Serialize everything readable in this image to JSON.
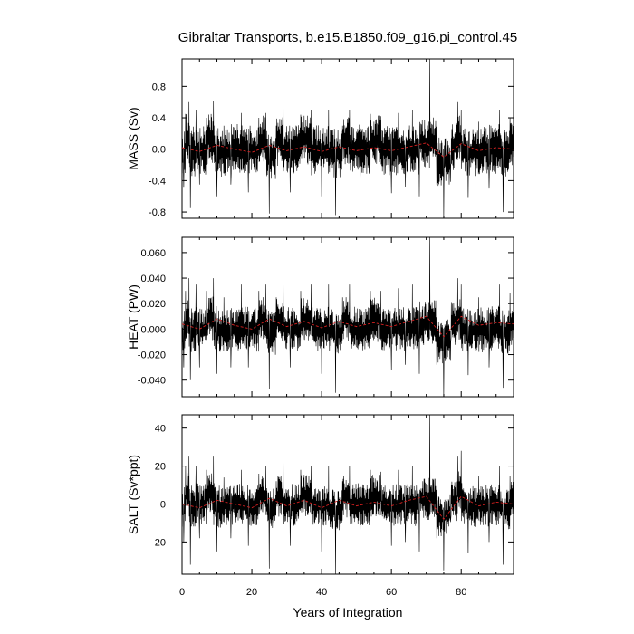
{
  "chart_data": {
    "type": "line",
    "title": "Gibraltar Transports, b.e15.B1850.f09_g16.pi_control.45",
    "xlabel": "Years of Integration",
    "xlim": [
      0,
      95
    ],
    "xticks": [
      0,
      20,
      40,
      60,
      80
    ],
    "xtick_labels": [
      "0",
      "20",
      "40",
      "60",
      "80"
    ],
    "colors": {
      "raw": "#000000",
      "smooth": "#d62020"
    },
    "panels": [
      {
        "ylabel": "MASS (Sv)",
        "ylim": [
          -0.88,
          1.15
        ],
        "yticks": [
          0.8,
          0.4,
          0.0,
          -0.4,
          -0.8
        ],
        "ytick_labels": [
          "0.8",
          "0.4",
          "0.0",
          "-0.4",
          "-0.8"
        ],
        "amp": 0.2,
        "series": [
          {
            "values": [
              [
                0,
                0.05
              ],
              [
                0.5,
                -0.49
              ],
              [
                1,
                0.45
              ],
              [
                2,
                0.6
              ],
              [
                2.4,
                -0.75
              ],
              [
                4,
                0.5
              ],
              [
                5,
                -0.45
              ],
              [
                7,
                0.4
              ],
              [
                9,
                0.62
              ],
              [
                10,
                -0.6
              ],
              [
                12,
                0.3
              ],
              [
                14,
                -0.45
              ],
              [
                17,
                0.46
              ],
              [
                19,
                -0.55
              ],
              [
                22,
                0.4
              ],
              [
                24,
                0.46
              ],
              [
                25,
                -0.82
              ],
              [
                27,
                0.3
              ],
              [
                29,
                0.52
              ],
              [
                31,
                -0.55
              ],
              [
                34,
                0.44
              ],
              [
                37,
                0.5
              ],
              [
                40,
                -0.6
              ],
              [
                42,
                0.5
              ],
              [
                44,
                -0.84
              ],
              [
                46,
                0.3
              ],
              [
                48,
                0.5
              ],
              [
                51,
                -0.5
              ],
              [
                54,
                0.45
              ],
              [
                57,
                0.42
              ],
              [
                60,
                -0.56
              ],
              [
                62,
                0.46
              ],
              [
                64,
                -0.48
              ],
              [
                66,
                0.5
              ],
              [
                68,
                -0.6
              ],
              [
                71,
                1.2
              ],
              [
                73,
                -0.45
              ],
              [
                75,
                -0.88
              ],
              [
                77,
                -0.2
              ],
              [
                79,
                0.6
              ],
              [
                80,
                0.5
              ],
              [
                82,
                -0.62
              ],
              [
                85,
                0.35
              ],
              [
                88,
                -0.5
              ],
              [
                91,
                0.5
              ],
              [
                92,
                -0.8
              ],
              [
                94,
                0.4
              ],
              [
                95,
                0.1
              ]
            ]
          },
          {
            "values": [
              [
                0,
                0.02
              ],
              [
                5,
                -0.03
              ],
              [
                10,
                0.05
              ],
              [
                15,
                0.0
              ],
              [
                20,
                -0.04
              ],
              [
                25,
                0.05
              ],
              [
                30,
                -0.02
              ],
              [
                35,
                0.03
              ],
              [
                40,
                -0.03
              ],
              [
                45,
                0.03
              ],
              [
                50,
                -0.02
              ],
              [
                55,
                0.02
              ],
              [
                60,
                -0.02
              ],
              [
                65,
                0.03
              ],
              [
                70,
                0.08
              ],
              [
                75,
                -0.1
              ],
              [
                80,
                0.07
              ],
              [
                85,
                -0.02
              ],
              [
                90,
                0.02
              ],
              [
                95,
                0.0
              ]
            ]
          }
        ]
      },
      {
        "ylabel": "HEAT (PW)",
        "ylim": [
          -0.053,
          0.072
        ],
        "yticks": [
          0.06,
          0.04,
          0.02,
          0.0,
          -0.02,
          -0.04
        ],
        "ytick_labels": [
          "0.060",
          "0.040",
          "0.020",
          "0.000",
          "-0.020",
          "-0.040"
        ],
        "amp": 0.011,
        "series": [
          {
            "values": [
              [
                0,
                0.005
              ],
              [
                0.5,
                -0.03
              ],
              [
                1,
                0.03
              ],
              [
                2,
                0.04
              ],
              [
                2.4,
                -0.04
              ],
              [
                4,
                0.035
              ],
              [
                5,
                -0.03
              ],
              [
                7,
                0.03
              ],
              [
                9,
                0.04
              ],
              [
                10,
                -0.035
              ],
              [
                12,
                0.025
              ],
              [
                14,
                -0.03
              ],
              [
                17,
                0.035
              ],
              [
                19,
                -0.03
              ],
              [
                22,
                0.03
              ],
              [
                24,
                0.035
              ],
              [
                25,
                -0.047
              ],
              [
                27,
                0.025
              ],
              [
                29,
                0.035
              ],
              [
                31,
                -0.03
              ],
              [
                34,
                0.03
              ],
              [
                37,
                0.035
              ],
              [
                40,
                -0.035
              ],
              [
                42,
                0.035
              ],
              [
                44,
                -0.05
              ],
              [
                46,
                0.025
              ],
              [
                48,
                0.035
              ],
              [
                51,
                -0.03
              ],
              [
                54,
                0.03
              ],
              [
                57,
                0.03
              ],
              [
                60,
                -0.032
              ],
              [
                62,
                0.032
              ],
              [
                64,
                -0.028
              ],
              [
                66,
                0.035
              ],
              [
                68,
                -0.035
              ],
              [
                71,
                0.072
              ],
              [
                73,
                -0.028
              ],
              [
                75,
                -0.053
              ],
              [
                77,
                -0.01
              ],
              [
                79,
                0.04
              ],
              [
                80,
                0.035
              ],
              [
                82,
                -0.036
              ],
              [
                85,
                0.025
              ],
              [
                88,
                -0.03
              ],
              [
                91,
                0.035
              ],
              [
                92,
                -0.046
              ],
              [
                94,
                0.028
              ],
              [
                95,
                0.006
              ]
            ]
          },
          {
            "values": [
              [
                0,
                0.004
              ],
              [
                5,
                0.0
              ],
              [
                10,
                0.008
              ],
              [
                15,
                0.003
              ],
              [
                20,
                0.0
              ],
              [
                25,
                0.008
              ],
              [
                30,
                0.002
              ],
              [
                35,
                0.006
              ],
              [
                40,
                0.001
              ],
              [
                45,
                0.006
              ],
              [
                50,
                0.002
              ],
              [
                55,
                0.005
              ],
              [
                60,
                0.002
              ],
              [
                65,
                0.006
              ],
              [
                70,
                0.01
              ],
              [
                75,
                -0.006
              ],
              [
                80,
                0.01
              ],
              [
                85,
                0.003
              ],
              [
                90,
                0.005
              ],
              [
                95,
                0.004
              ]
            ]
          }
        ]
      },
      {
        "ylabel": "SALT (Sv*ppt)",
        "ylim": [
          -37,
          47
        ],
        "yticks": [
          40,
          20,
          0,
          -20
        ],
        "ytick_labels": [
          "40",
          "20",
          "0",
          "-20"
        ],
        "amp": 7,
        "series": [
          {
            "values": [
              [
                0,
                1
              ],
              [
                0.5,
                -20
              ],
              [
                1,
                20
              ],
              [
                2,
                25
              ],
              [
                2.4,
                -32
              ],
              [
                4,
                20
              ],
              [
                5,
                -18
              ],
              [
                7,
                18
              ],
              [
                9,
                25
              ],
              [
                10,
                -25
              ],
              [
                12,
                14
              ],
              [
                14,
                -18
              ],
              [
                17,
                18
              ],
              [
                19,
                -22
              ],
              [
                22,
                16
              ],
              [
                24,
                20
              ],
              [
                25,
                -34
              ],
              [
                27,
                12
              ],
              [
                29,
                22
              ],
              [
                31,
                -22
              ],
              [
                34,
                18
              ],
              [
                37,
                20
              ],
              [
                40,
                -25
              ],
              [
                42,
                20
              ],
              [
                44,
                -37
              ],
              [
                46,
                12
              ],
              [
                48,
                20
              ],
              [
                51,
                -20
              ],
              [
                54,
                18
              ],
              [
                57,
                17
              ],
              [
                60,
                -22
              ],
              [
                62,
                18
              ],
              [
                64,
                -20
              ],
              [
                66,
                20
              ],
              [
                68,
                -25
              ],
              [
                71,
                47
              ],
              [
                73,
                -18
              ],
              [
                75,
                -35
              ],
              [
                77,
                -8
              ],
              [
                79,
                25
              ],
              [
                80,
                28
              ],
              [
                82,
                -26
              ],
              [
                85,
                15
              ],
              [
                88,
                -20
              ],
              [
                91,
                20
              ],
              [
                92,
                -32
              ],
              [
                94,
                15
              ],
              [
                95,
                3
              ]
            ]
          },
          {
            "values": [
              [
                0,
                0
              ],
              [
                5,
                -2
              ],
              [
                10,
                2
              ],
              [
                15,
                0
              ],
              [
                20,
                -2
              ],
              [
                25,
                3
              ],
              [
                30,
                -1
              ],
              [
                35,
                2
              ],
              [
                40,
                -2
              ],
              [
                45,
                2
              ],
              [
                50,
                -1
              ],
              [
                55,
                1
              ],
              [
                60,
                -1
              ],
              [
                65,
                2
              ],
              [
                70,
                4
              ],
              [
                75,
                -8
              ],
              [
                80,
                4
              ],
              [
                85,
                -1
              ],
              [
                90,
                1
              ],
              [
                95,
                0
              ]
            ]
          }
        ]
      }
    ]
  }
}
